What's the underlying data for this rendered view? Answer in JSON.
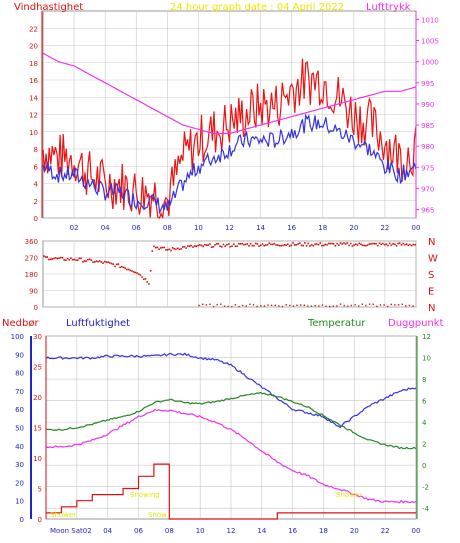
{
  "colors": {
    "wind": "#ee1111",
    "gust": "#ee1111",
    "pressure": "#ee33ee",
    "direction": "#dd1111",
    "humidity": "#3333dd",
    "temperature": "#228822",
    "dewpoint": "#ee33ee",
    "rain": "#dd1111",
    "title": "#e8e800",
    "grid": "#c8c8c8",
    "axis_left": "#dd1111",
    "axis_right": "#ee33ee",
    "axis_blue": "#2222cc",
    "axis_green": "#228822"
  },
  "panel1": {
    "title": "24 hour graph date : 04 April 2022",
    "left_label": "Vindhastighet",
    "right_label": "Lufttrykk",
    "left_ticks": [
      "0",
      "2",
      "4",
      "6",
      "8",
      "10",
      "12",
      "14",
      "16",
      "18",
      "20",
      "22"
    ],
    "right_ticks": [
      "965",
      "970",
      "975",
      "980",
      "985",
      "990",
      "995",
      "1000",
      "1005",
      "1010"
    ],
    "x_ticks": [
      "02",
      "04",
      "06",
      "08",
      "10",
      "12",
      "14",
      "16",
      "18",
      "20",
      "22",
      "00"
    ]
  },
  "panel2": {
    "left_ticks": [
      "0",
      "90",
      "180",
      "270",
      "360"
    ],
    "right_labels": [
      "N",
      "W",
      "S",
      "E",
      "N"
    ]
  },
  "panel3": {
    "label_rain": "Nedbør",
    "label_humidity": "Luftfuktighet",
    "label_temperature": "Temperatur",
    "label_dewpoint": "Duggpunkt",
    "hum_ticks": [
      "0",
      "10",
      "20",
      "30",
      "40",
      "50",
      "60",
      "70",
      "80",
      "90",
      "100"
    ],
    "rain_ticks": [
      "0",
      "5",
      "10",
      "15",
      "20",
      "25",
      "30"
    ],
    "temp_ticks": [
      "-4",
      "-2",
      "0",
      "2",
      "4",
      "6",
      "8",
      "10",
      "12"
    ],
    "x_ticks": [
      "02",
      "04",
      "06",
      "08",
      "10",
      "12",
      "14",
      "16",
      "18",
      "20",
      "22",
      "00"
    ],
    "first_tick": "Moon Sat02",
    "annotations": [
      "Shower",
      "Snow",
      "Snowing",
      "Shower"
    ]
  },
  "chart_data": [
    {
      "type": "line",
      "title": "24 hour graph date : 04 April 2022",
      "xlabel": "",
      "ylabel": "Vindhastighet",
      "x": [
        0,
        1,
        2,
        3,
        4,
        5,
        6,
        7,
        8,
        9,
        10,
        11,
        12,
        13,
        14,
        15,
        16,
        17,
        18,
        19,
        20,
        21,
        22,
        23,
        24
      ],
      "ylim": [
        0,
        24
      ],
      "y2lim": [
        963,
        1012
      ],
      "series": [
        {
          "name": "Vindhastighet",
          "axis": "left",
          "values": [
            8,
            7,
            7,
            5,
            4,
            4,
            3,
            3,
            2,
            7,
            9,
            10,
            11,
            12,
            13,
            13,
            15,
            16,
            16,
            14,
            12,
            11,
            9,
            7,
            8
          ]
        },
        {
          "name": "",
          "axis": "left",
          "values": [
            6,
            5,
            5,
            4,
            3,
            3,
            2,
            2,
            1,
            4,
            6,
            7,
            8,
            9,
            9,
            9,
            10,
            11,
            11,
            10,
            9,
            8,
            6,
            5,
            6
          ]
        },
        {
          "name": "Lufttrykk",
          "axis": "right",
          "values": [
            1002,
            1000,
            999,
            997,
            995,
            993,
            991,
            989,
            987,
            985,
            984,
            983,
            983,
            984,
            985,
            986,
            987,
            988,
            989,
            990,
            991,
            992,
            993,
            993,
            994
          ]
        }
      ]
    },
    {
      "type": "scatter",
      "ylabel": "",
      "ylim": [
        0,
        360
      ],
      "x": [
        0,
        1,
        2,
        3,
        4,
        5,
        6,
        6.8,
        7,
        8,
        9,
        10,
        11,
        12,
        13,
        14,
        15,
        16,
        17,
        18,
        19,
        20,
        21,
        22,
        23,
        24
      ],
      "series": [
        {
          "name": "",
          "values": [
            270,
            260,
            260,
            250,
            240,
            220,
            190,
            130,
            330,
            310,
            325,
            330,
            335,
            335,
            340,
            340,
            340,
            340,
            340,
            340,
            340,
            340,
            340,
            340,
            340,
            340
          ]
        }
      ]
    },
    {
      "type": "line",
      "xlabel": "",
      "ylabel": "",
      "x": [
        0,
        1,
        2,
        3,
        4,
        5,
        6,
        7,
        8,
        9,
        10,
        11,
        12,
        13,
        14,
        15,
        16,
        17,
        18,
        19,
        20,
        21,
        22,
        23,
        24
      ],
      "ylim": [
        0,
        100
      ],
      "y2lim": [
        -5,
        12
      ],
      "y3lim": [
        0,
        30
      ],
      "series": [
        {
          "name": "Luftfuktighet",
          "axis": "humidity",
          "values": [
            88,
            88,
            88,
            88,
            89,
            89,
            89,
            89,
            90,
            90,
            88,
            87,
            84,
            78,
            72,
            66,
            60,
            58,
            56,
            50,
            56,
            62,
            66,
            70,
            72
          ]
        },
        {
          "name": "Temperatur",
          "axis": "temperature",
          "values": [
            3.3,
            3.3,
            3.5,
            3.8,
            4.2,
            4.5,
            5,
            5.8,
            6.1,
            5.8,
            5.7,
            5.9,
            6.2,
            6.5,
            6.7,
            6.4,
            5.9,
            5.4,
            4.6,
            3.8,
            3.0,
            2.3,
            1.9,
            1.6,
            1.6
          ]
        },
        {
          "name": "Duggpunkt",
          "axis": "temperature",
          "values": [
            1.7,
            1.7,
            1.9,
            2.3,
            2.9,
            3.7,
            4.5,
            5.1,
            5.1,
            4.8,
            4.5,
            4.0,
            3.3,
            2.4,
            1.3,
            0.3,
            -0.5,
            -1.0,
            -1.8,
            -2.2,
            -2.7,
            -3.2,
            -3.4,
            -3.4,
            -3.4
          ]
        },
        {
          "name": "Nedbør",
          "axis": "rain",
          "values": [
            1,
            2,
            3,
            4,
            4,
            5,
            7,
            9,
            0,
            0,
            0,
            0,
            0,
            0,
            0,
            1,
            1,
            1,
            1,
            1,
            1,
            1,
            1,
            1,
            1
          ]
        }
      ]
    }
  ]
}
